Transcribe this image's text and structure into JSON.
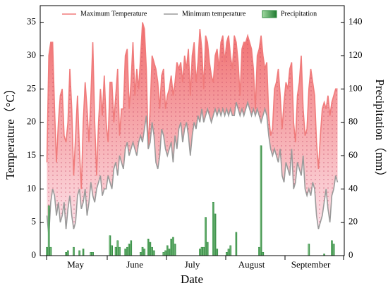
{
  "chart_data": {
    "type": "line",
    "x_label": "Date",
    "y_label": "Temperature（°C）",
    "y2_label": "Precipitation（mm）",
    "categories": [
      null,
      null,
      null,
      null,
      null,
      null,
      null,
      null,
      null,
      null,
      null,
      null,
      null,
      null,
      null,
      "May",
      null,
      null,
      null,
      null,
      null,
      null,
      null,
      null,
      null,
      null,
      null,
      null,
      null,
      null,
      null,
      null,
      null,
      null,
      null,
      null,
      null,
      null,
      null,
      null,
      null,
      null,
      null,
      null,
      null,
      null,
      "June",
      null,
      null,
      null,
      null,
      null,
      null,
      null,
      null,
      null,
      null,
      null,
      null,
      null,
      null,
      null,
      null,
      null,
      null,
      null,
      null,
      null,
      null,
      null,
      null,
      null,
      null,
      null,
      null,
      null,
      "July",
      null,
      null,
      null,
      null,
      null,
      null,
      null,
      null,
      null,
      null,
      null,
      null,
      null,
      null,
      null,
      null,
      null,
      null,
      null,
      null,
      null,
      null,
      null,
      null,
      null,
      null,
      null,
      null,
      null,
      null,
      "August",
      null,
      null,
      null,
      null,
      null,
      null,
      null,
      null,
      null,
      null,
      null,
      null,
      null,
      null,
      null,
      null,
      null,
      null,
      null,
      null,
      null,
      null,
      null,
      null,
      null,
      null,
      null,
      null,
      null,
      null,
      "September",
      null,
      null,
      null,
      null,
      null,
      null,
      null,
      null,
      null,
      null,
      null,
      null,
      null,
      null
    ],
    "series": [
      {
        "name": "Maximum Temperature",
        "color": "#f07b7b",
        "type": "line",
        "values": [
          14,
          30,
          32,
          32,
          22,
          14,
          20,
          24,
          25,
          18,
          17,
          20,
          28,
          22,
          12,
          18,
          24,
          16,
          10,
          20,
          26,
          22,
          17,
          24,
          32,
          20,
          12,
          20,
          25,
          21,
          27,
          20,
          17,
          26,
          26,
          20,
          24,
          28,
          18,
          22,
          22,
          30,
          31,
          22,
          26,
          32,
          24,
          28,
          25,
          30,
          35,
          34,
          28,
          16,
          22,
          30,
          29,
          28,
          26,
          22,
          27,
          28,
          22,
          24,
          25,
          27,
          24,
          26,
          29,
          28,
          29,
          26,
          30,
          28,
          31,
          24,
          30,
          32,
          26,
          29,
          34,
          31,
          25,
          33,
          32,
          29,
          27,
          26,
          30,
          31,
          28,
          32,
          33,
          29,
          32,
          33,
          30,
          28,
          33,
          32,
          29,
          24,
          31,
          32,
          32,
          33,
          32,
          31,
          28,
          22,
          30,
          31,
          33,
          30,
          28,
          29,
          21,
          18,
          19,
          25,
          26,
          28,
          24,
          19,
          23,
          26,
          25,
          28,
          29,
          20,
          17,
          24,
          26,
          30,
          22,
          18,
          19,
          25,
          28,
          26,
          24,
          17,
          13,
          18,
          22,
          23,
          22,
          24,
          21,
          23,
          24,
          25,
          25
        ]
      },
      {
        "name": "Minimum temperature",
        "color": "#9a9a9a",
        "type": "line",
        "values": [
          6,
          3,
          8,
          10,
          9,
          6,
          8,
          5,
          6,
          8,
          4,
          7,
          9,
          6,
          4,
          5,
          9,
          10,
          7,
          8,
          10,
          6,
          8,
          11,
          9,
          8,
          10,
          11,
          12,
          9,
          10,
          10,
          12,
          11,
          10,
          13,
          14,
          12,
          15,
          14,
          13,
          16,
          17,
          15,
          16,
          17,
          16,
          15,
          17,
          18,
          17,
          19,
          21,
          16,
          17,
          20,
          18,
          14,
          13,
          15,
          19,
          18,
          16,
          15,
          16,
          17,
          14,
          18,
          16,
          19,
          20,
          17,
          19,
          20,
          18,
          15,
          18,
          20,
          19,
          21,
          20,
          22,
          20,
          21,
          22,
          21,
          20,
          21,
          22,
          21,
          22,
          21,
          22,
          21,
          22,
          21,
          22,
          21,
          21,
          23,
          22,
          21,
          22,
          21,
          22,
          23,
          22,
          21,
          22,
          21,
          22,
          21,
          20,
          21,
          22,
          21,
          18,
          16,
          15,
          16,
          15,
          14,
          16,
          12,
          11,
          14,
          13,
          12,
          16,
          10,
          11,
          14,
          13,
          12,
          15,
          10,
          9,
          10,
          9,
          11,
          10,
          6,
          4,
          5,
          6,
          8,
          10,
          7,
          5,
          9,
          10,
          12,
          11
        ]
      },
      {
        "name": "Precipitation",
        "color": "#2e8b3e",
        "type": "bar",
        "axis": "y2",
        "values": [
          5,
          30,
          5,
          0,
          0,
          0,
          0,
          0,
          0,
          0,
          2,
          3,
          0,
          0,
          5,
          0,
          0,
          3,
          0,
          4,
          0,
          0,
          0,
          2,
          2,
          0,
          0,
          0,
          0,
          0,
          0,
          0,
          0,
          12,
          6,
          0,
          5,
          9,
          5,
          0,
          0,
          4,
          5,
          7,
          9,
          0,
          0,
          0,
          0,
          2,
          5,
          4,
          0,
          10,
          8,
          5,
          3,
          0,
          0,
          0,
          0,
          2,
          3,
          6,
          4,
          10,
          11,
          7,
          0,
          0,
          0,
          0,
          0,
          0,
          0,
          0,
          0,
          0,
          0,
          0,
          4,
          5,
          5,
          23,
          8,
          0,
          0,
          32,
          25,
          4,
          0,
          0,
          0,
          0,
          2,
          4,
          6,
          0,
          0,
          14,
          0,
          0,
          0,
          0,
          0,
          0,
          0,
          0,
          0,
          0,
          0,
          5,
          66,
          2,
          0,
          0,
          0,
          0,
          0,
          0,
          0,
          0,
          0,
          0,
          0,
          0,
          0,
          0,
          0,
          0,
          0,
          0,
          0,
          0,
          0,
          0,
          0,
          7,
          0,
          0,
          0,
          0,
          0,
          0,
          0,
          1,
          0,
          0,
          0,
          9,
          7,
          0,
          0
        ]
      }
    ],
    "ylim": [
      0,
      37.5
    ],
    "yticks": [
      0,
      5,
      10,
      15,
      20,
      25,
      30,
      35
    ],
    "y2lim": [
      0,
      150
    ],
    "y2ticks": [
      0,
      20,
      40,
      60,
      80,
      100,
      120,
      140
    ],
    "legend": "top"
  }
}
